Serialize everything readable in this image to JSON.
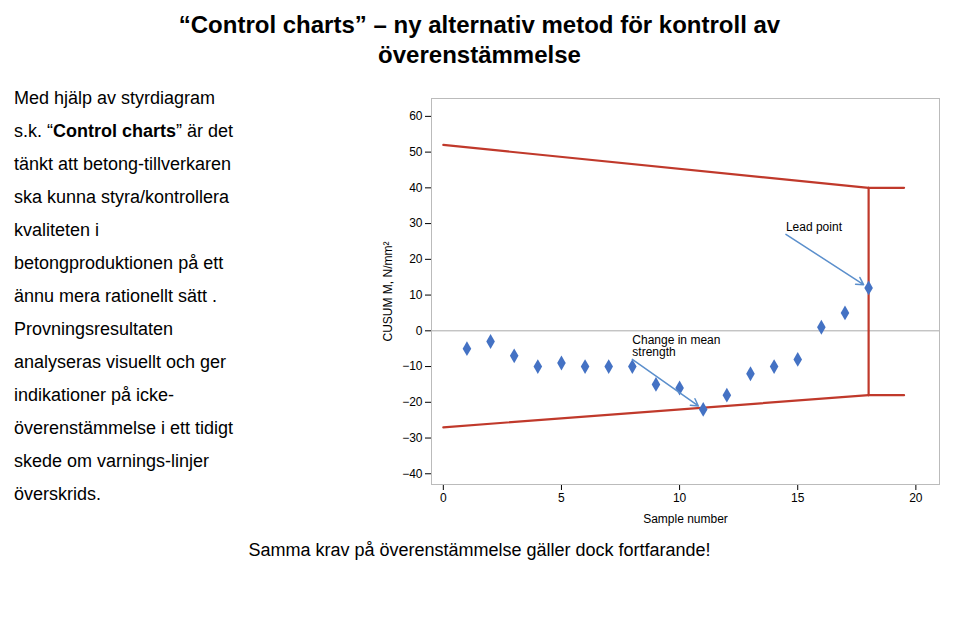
{
  "chart_data": {
    "type": "scatter",
    "title": "“Control charts” – ny alternativ metod för kontroll av\növerenstämmelse",
    "body": [
      "Med hjälp av styrdiagram",
      [
        {
          "text": "s.k. “",
          "bold": false
        },
        {
          "text": "Control charts",
          "bold": true
        },
        {
          "text": "” är det",
          "bold": false
        }
      ],
      "tänkt att betong-tillverkaren",
      "ska kunna styra/kontrollera",
      "kvaliteten i",
      "betongproduktionen på ett",
      "ännu mera rationellt sätt .",
      "Provningsresultaten",
      "analyseras visuellt och ger",
      "indikationer på icke-",
      "överenstämmelse i ett tidigt",
      "skede om varnings-linjer",
      "överskrids."
    ],
    "footer": "Samma krav på överenstämmelse gäller dock fortfarande!",
    "xlabel": "Sample number",
    "ylabel": "CUSUM M, N/mm²",
    "series": [
      {
        "type": "hline",
        "color": "#aaaaaa",
        "values": [
          0
        ]
      },
      {
        "type": "line",
        "color": "#c0392b",
        "x": [
          0,
          18
        ],
        "values": [
          52,
          40
        ]
      },
      {
        "type": "line",
        "color": "#c0392b",
        "x": [
          0,
          18
        ],
        "values": [
          -27,
          -18
        ]
      },
      {
        "type": "line",
        "color": "#c0392b",
        "x": [
          18,
          18
        ],
        "values": [
          40,
          -18
        ]
      },
      {
        "type": "line",
        "color": "#c0392b",
        "x": [
          18,
          19.5
        ],
        "values": [
          40,
          40
        ]
      },
      {
        "type": "line",
        "color": "#c0392b",
        "x": [
          18,
          19.5
        ],
        "values": [
          -18,
          -18
        ]
      },
      {
        "type": "scatter",
        "color": "#4472c4",
        "marker": "diamond",
        "x": [
          1,
          2,
          3,
          4,
          5,
          6,
          7,
          8,
          9,
          10,
          11,
          12,
          13,
          14,
          15,
          16,
          17,
          18
        ],
        "values": [
          -5,
          -3,
          -7,
          -10,
          -9,
          -10,
          -10,
          -10,
          -15,
          -16,
          -22,
          -18,
          -12,
          -10,
          -8,
          1,
          5,
          12
        ]
      }
    ],
    "annotations": [
      {
        "text": "Lead point",
        "x": 14.5,
        "y": 27,
        "arrow_x": 18,
        "arrow_y": 12,
        "color": "#5b8fcc"
      },
      {
        "text": "Change in mean\nstrength",
        "x": 8.0,
        "y": -8,
        "arrow_x": 11,
        "arrow_y": -22,
        "color": "#5b8fcc"
      }
    ],
    "xlim": [
      -0.5,
      21
    ],
    "ylim": [
      -43,
      65
    ],
    "xticks": [
      0,
      5,
      10,
      15,
      20
    ],
    "yticks": [
      -40,
      -30,
      -20,
      -10,
      0,
      10,
      20,
      30,
      40,
      50,
      60
    ],
    "grid": false
  }
}
